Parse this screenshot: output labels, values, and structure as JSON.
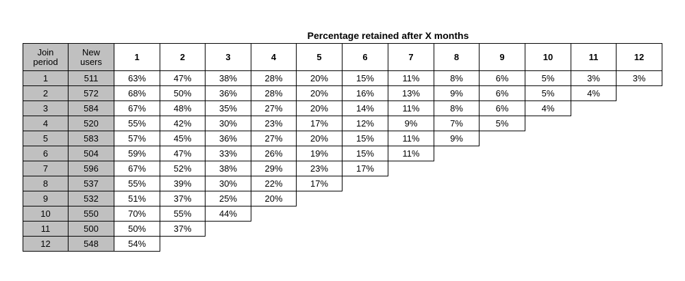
{
  "chart_data": {
    "type": "table",
    "title": "Percentage retained after X months",
    "column_headers": {
      "join_period": "Join\nperiod",
      "new_users": "New\nusers",
      "months": [
        "1",
        "2",
        "3",
        "4",
        "5",
        "6",
        "7",
        "8",
        "9",
        "10",
        "11",
        "12"
      ]
    },
    "rows": [
      {
        "period": "1",
        "new_users": "511",
        "values": [
          "63%",
          "47%",
          "38%",
          "28%",
          "20%",
          "15%",
          "11%",
          "8%",
          "6%",
          "5%",
          "3%",
          "3%"
        ]
      },
      {
        "period": "2",
        "new_users": "572",
        "values": [
          "68%",
          "50%",
          "36%",
          "28%",
          "20%",
          "16%",
          "13%",
          "9%",
          "6%",
          "5%",
          "4%"
        ]
      },
      {
        "period": "3",
        "new_users": "584",
        "values": [
          "67%",
          "48%",
          "35%",
          "27%",
          "20%",
          "14%",
          "11%",
          "8%",
          "6%",
          "4%"
        ]
      },
      {
        "period": "4",
        "new_users": "520",
        "values": [
          "55%",
          "42%",
          "30%",
          "23%",
          "17%",
          "12%",
          "9%",
          "7%",
          "5%"
        ]
      },
      {
        "period": "5",
        "new_users": "583",
        "values": [
          "57%",
          "45%",
          "36%",
          "27%",
          "20%",
          "15%",
          "11%",
          "9%"
        ]
      },
      {
        "period": "6",
        "new_users": "504",
        "values": [
          "59%",
          "47%",
          "33%",
          "26%",
          "19%",
          "15%",
          "11%"
        ]
      },
      {
        "period": "7",
        "new_users": "596",
        "values": [
          "67%",
          "52%",
          "38%",
          "29%",
          "23%",
          "17%"
        ]
      },
      {
        "period": "8",
        "new_users": "537",
        "values": [
          "55%",
          "39%",
          "30%",
          "22%",
          "17%"
        ]
      },
      {
        "period": "9",
        "new_users": "532",
        "values": [
          "51%",
          "37%",
          "25%",
          "20%"
        ]
      },
      {
        "period": "10",
        "new_users": "550",
        "values": [
          "70%",
          "55%",
          "44%"
        ]
      },
      {
        "period": "11",
        "new_users": "500",
        "values": [
          "50%",
          "37%"
        ]
      },
      {
        "period": "12",
        "new_users": "548",
        "values": [
          "54%"
        ]
      }
    ],
    "header_color": "#c0c0c0"
  }
}
